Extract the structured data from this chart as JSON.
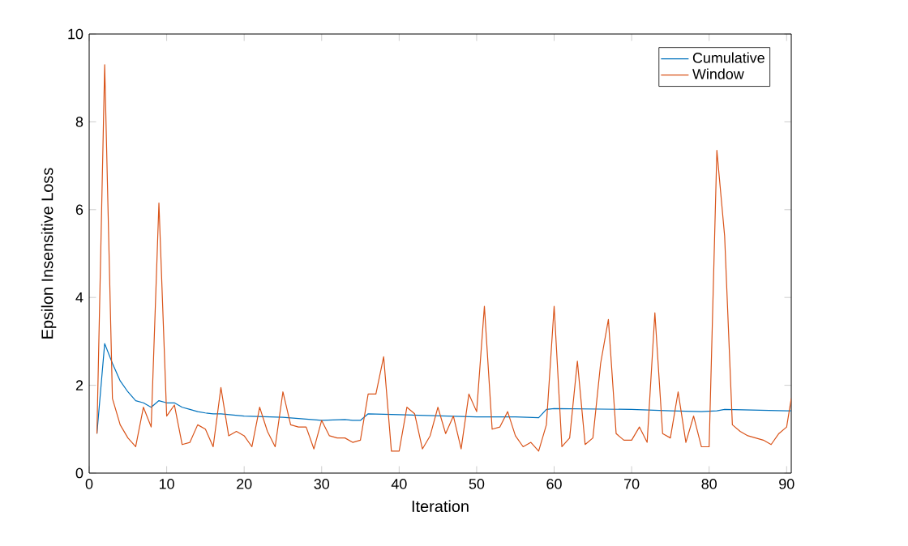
{
  "chart_data": {
    "type": "line",
    "xlabel": "Iteration",
    "ylabel": "Epsilon Insensitive Loss",
    "xlim": [
      0,
      90.6
    ],
    "ylim": [
      0,
      10
    ],
    "xticks": [
      0,
      10,
      20,
      30,
      40,
      50,
      60,
      70,
      80,
      90
    ],
    "yticks": [
      0,
      2,
      4,
      6,
      8,
      10
    ],
    "legend": "top right",
    "grid": false,
    "series": [
      {
        "name": "Cumulative",
        "color": "#0072bd",
        "x": [
          1,
          2,
          3,
          4,
          5,
          6,
          7,
          8,
          9,
          10,
          11,
          12,
          13,
          14,
          15,
          16,
          17,
          20,
          25,
          30,
          33,
          34,
          35,
          36,
          40,
          50,
          55,
          58,
          59,
          60,
          70,
          75,
          79,
          81,
          82,
          90,
          90.6
        ],
        "values": [
          0.9,
          2.95,
          2.5,
          2.1,
          1.85,
          1.65,
          1.6,
          1.5,
          1.65,
          1.6,
          1.6,
          1.5,
          1.45,
          1.4,
          1.37,
          1.35,
          1.35,
          1.3,
          1.27,
          1.2,
          1.22,
          1.2,
          1.2,
          1.35,
          1.33,
          1.28,
          1.28,
          1.26,
          1.45,
          1.47,
          1.45,
          1.42,
          1.4,
          1.42,
          1.45,
          1.42,
          1.42
        ]
      },
      {
        "name": "Window",
        "color": "#d95319",
        "x": [
          1,
          2,
          3,
          4,
          5,
          6,
          7,
          8,
          9,
          10,
          11,
          12,
          13,
          14,
          15,
          16,
          17,
          18,
          19,
          20,
          21,
          22,
          23,
          24,
          25,
          26,
          27,
          28,
          29,
          30,
          31,
          32,
          33,
          34,
          35,
          36,
          37,
          38,
          39,
          40,
          41,
          42,
          43,
          44,
          45,
          46,
          47,
          48,
          49,
          50,
          51,
          52,
          53,
          54,
          55,
          56,
          57,
          58,
          59,
          60,
          61,
          62,
          63,
          64,
          65,
          66,
          67,
          68,
          69,
          70,
          71,
          72,
          73,
          74,
          75,
          76,
          77,
          78,
          79,
          80,
          81,
          82,
          83,
          84,
          85,
          86,
          87,
          88,
          89,
          90,
          90.6
        ],
        "values": [
          0.9,
          9.3,
          1.7,
          1.1,
          0.8,
          0.6,
          1.5,
          1.05,
          6.15,
          1.3,
          1.55,
          0.65,
          0.7,
          1.1,
          1.0,
          0.6,
          1.95,
          0.85,
          0.95,
          0.85,
          0.6,
          1.5,
          0.95,
          0.6,
          1.85,
          1.1,
          1.05,
          1.05,
          0.55,
          1.2,
          0.85,
          0.8,
          0.8,
          0.7,
          0.75,
          1.8,
          1.8,
          2.65,
          0.5,
          0.5,
          1.5,
          1.35,
          0.55,
          0.85,
          1.5,
          0.9,
          1.3,
          0.55,
          1.8,
          1.4,
          3.8,
          1.0,
          1.05,
          1.4,
          0.85,
          0.6,
          0.7,
          0.5,
          1.1,
          3.8,
          0.6,
          0.8,
          2.55,
          0.65,
          0.8,
          2.5,
          3.5,
          0.9,
          0.75,
          0.75,
          1.05,
          0.7,
          3.65,
          0.9,
          0.8,
          1.85,
          0.7,
          1.3,
          0.6,
          0.6,
          7.35,
          5.4,
          1.1,
          0.95,
          0.85,
          0.8,
          0.75,
          0.65,
          0.9,
          1.05,
          1.7
        ]
      }
    ]
  }
}
